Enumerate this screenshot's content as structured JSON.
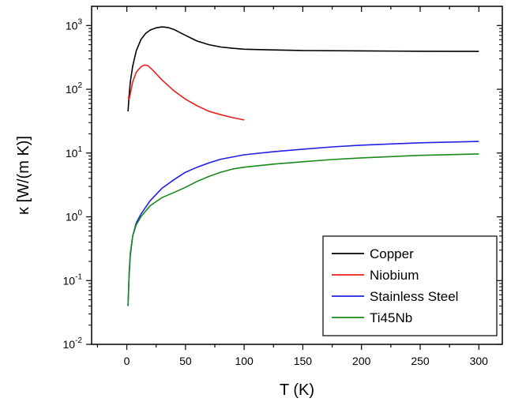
{
  "chart_data": {
    "type": "line",
    "title": "",
    "xlabel": "T (K)",
    "ylabel": "κ [W/(m K)]",
    "xlim": [
      -30,
      320
    ],
    "ylim": [
      0.01,
      2000
    ],
    "yscale": "log",
    "x_ticks": [
      0,
      50,
      100,
      150,
      200,
      250,
      300
    ],
    "y_ticks": [
      {
        "value": 0.01,
        "base": "10",
        "exp": "-2"
      },
      {
        "value": 0.1,
        "base": "10",
        "exp": "-1"
      },
      {
        "value": 1,
        "base": "10",
        "exp": "0"
      },
      {
        "value": 10,
        "base": "10",
        "exp": "1"
      },
      {
        "value": 100,
        "base": "10",
        "exp": "2"
      },
      {
        "value": 1000,
        "base": "10",
        "exp": "3"
      }
    ],
    "grid": false,
    "legend_position": "bottom-right",
    "series": [
      {
        "name": "Copper",
        "color": "#000000",
        "points": [
          [
            1,
            45
          ],
          [
            2,
            80
          ],
          [
            3,
            130
          ],
          [
            5,
            230
          ],
          [
            8,
            400
          ],
          [
            12,
            600
          ],
          [
            16,
            750
          ],
          [
            20,
            850
          ],
          [
            25,
            920
          ],
          [
            30,
            950
          ],
          [
            35,
            930
          ],
          [
            40,
            870
          ],
          [
            50,
            700
          ],
          [
            60,
            570
          ],
          [
            70,
            500
          ],
          [
            80,
            460
          ],
          [
            90,
            440
          ],
          [
            100,
            425
          ],
          [
            120,
            415
          ],
          [
            150,
            405
          ],
          [
            200,
            400
          ],
          [
            250,
            395
          ],
          [
            300,
            392
          ]
        ]
      },
      {
        "name": "Niobium",
        "color": "#e8201c",
        "points": [
          [
            1,
            75
          ],
          [
            2,
            70
          ],
          [
            3,
            85
          ],
          [
            5,
            130
          ],
          [
            8,
            185
          ],
          [
            12,
            225
          ],
          [
            15,
            240
          ],
          [
            18,
            235
          ],
          [
            22,
            200
          ],
          [
            30,
            140
          ],
          [
            40,
            95
          ],
          [
            50,
            70
          ],
          [
            60,
            55
          ],
          [
            70,
            45
          ],
          [
            80,
            40
          ],
          [
            90,
            36
          ],
          [
            100,
            33
          ]
        ]
      },
      {
        "name": "Stainless Steel",
        "color": "#1f1fe6",
        "points": [
          [
            1,
            0.04
          ],
          [
            2,
            0.12
          ],
          [
            3,
            0.25
          ],
          [
            5,
            0.5
          ],
          [
            8,
            0.8
          ],
          [
            12,
            1.1
          ],
          [
            20,
            1.8
          ],
          [
            30,
            2.8
          ],
          [
            40,
            3.8
          ],
          [
            50,
            5.0
          ],
          [
            60,
            6.0
          ],
          [
            70,
            7.0
          ],
          [
            80,
            8.0
          ],
          [
            100,
            9.4
          ],
          [
            125,
            10.5
          ],
          [
            150,
            11.5
          ],
          [
            175,
            12.5
          ],
          [
            200,
            13.3
          ],
          [
            250,
            14.5
          ],
          [
            300,
            15.2
          ]
        ]
      },
      {
        "name": "Ti45Nb",
        "color": "#1a8a1a",
        "points": [
          [
            1,
            0.04
          ],
          [
            2,
            0.13
          ],
          [
            3,
            0.27
          ],
          [
            5,
            0.5
          ],
          [
            8,
            0.75
          ],
          [
            12,
            1.0
          ],
          [
            20,
            1.5
          ],
          [
            30,
            2.0
          ],
          [
            40,
            2.4
          ],
          [
            50,
            2.9
          ],
          [
            60,
            3.6
          ],
          [
            70,
            4.3
          ],
          [
            80,
            5.0
          ],
          [
            90,
            5.6
          ],
          [
            100,
            6.0
          ],
          [
            125,
            6.7
          ],
          [
            150,
            7.3
          ],
          [
            175,
            7.9
          ],
          [
            200,
            8.4
          ],
          [
            250,
            9.2
          ],
          [
            300,
            9.7
          ]
        ]
      }
    ]
  }
}
